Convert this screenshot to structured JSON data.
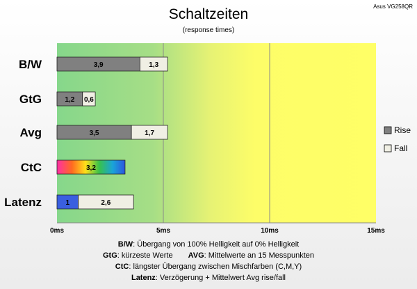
{
  "chart_data": {
    "type": "bar",
    "orientation": "horizontal",
    "stacked": true,
    "title": "Schaltzeiten",
    "subtitle": "(response times)",
    "corner_label": "Asus VG258QR",
    "categories": [
      "B/W",
      "GtG",
      "Avg",
      "CtC",
      "Latenz"
    ],
    "series": [
      {
        "name": "Rise",
        "values": [
          3.9,
          1.2,
          3.5,
          null,
          null
        ],
        "color": "#808080"
      },
      {
        "name": "Fall",
        "values": [
          1.3,
          0.6,
          1.7,
          null,
          2.6
        ],
        "color": "#f0efe4"
      }
    ],
    "special_segments": {
      "ctc": {
        "value": 3.2,
        "label": "3,2",
        "fill": "rainbow"
      },
      "latency_delay": {
        "value": 1,
        "label": "1",
        "color": "#3a5fe0"
      }
    },
    "value_labels": {
      "rise": [
        "3,9",
        "1,2",
        "3,5",
        "",
        ""
      ],
      "fall": [
        "1,3",
        "0,6",
        "1,7",
        "",
        "2,6"
      ]
    },
    "xlim": [
      0,
      15
    ],
    "xticks": [
      0,
      5,
      10,
      15
    ],
    "xtick_labels": [
      "0ms",
      "5ms",
      "10ms",
      "15ms"
    ],
    "grid": true,
    "legend_position": "right",
    "background_zones": {
      "green": "#88d88c",
      "yellow": "#ffff66"
    },
    "notes": [
      {
        "key": "B/W",
        "text": ":  Übergang von 100% Helligkeit auf 0% Helligkeit"
      },
      {
        "key": "GtG",
        "text": ": kürzeste  Werte",
        "key2": "AVG",
        "text2": ": Mittelwerte  an 15 Messpunkten"
      },
      {
        "key": "CtC",
        "text": ": längster Übergang  zwischen Mischfarben  (C,M,Y)"
      },
      {
        "key": "Latenz",
        "text": ": Verzögerung  + Mittelwert  Avg rise/fall"
      }
    ]
  }
}
